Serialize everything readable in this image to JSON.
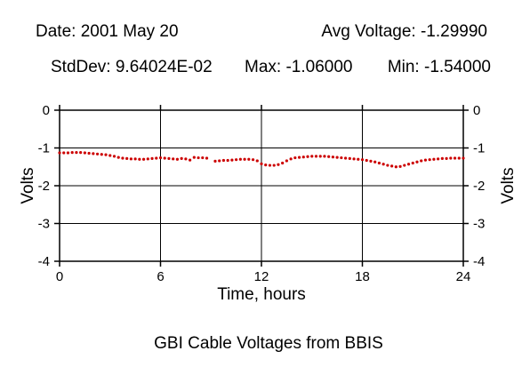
{
  "header": {
    "date": "Date: 2001 May 20",
    "avg": "Avg Voltage: -1.29990",
    "stddev": "StdDev: 9.64024E-02",
    "max": "Max: -1.06000",
    "min": "Min: -1.54000"
  },
  "chart_data": {
    "type": "scatter",
    "title": "GBI Cable Voltages from BBIS",
    "xlabel": "Time, hours",
    "ylabel": "Volts",
    "xlim": [
      0,
      24
    ],
    "ylim": [
      -4,
      0
    ],
    "xticks": [
      0,
      6,
      12,
      18,
      24
    ],
    "yticks": [
      0,
      -1,
      -2,
      -3,
      -4
    ],
    "grid": true,
    "marker_color": "#cc0000",
    "series": [
      {
        "x": [
          0.0,
          0.25,
          0.5,
          0.75,
          1.0,
          1.25,
          1.5,
          1.75,
          2.0,
          2.25,
          2.5,
          2.75,
          3.0,
          3.25,
          3.5,
          3.75,
          4.0,
          4.25,
          4.5,
          4.75,
          5.0,
          5.25,
          5.5,
          5.75,
          6.0,
          6.25,
          6.5,
          6.75,
          7.0,
          7.25,
          7.5,
          7.75,
          8.0,
          8.25,
          8.5,
          8.75,
          9.25,
          9.5,
          9.75,
          10.0,
          10.25,
          10.5,
          10.75,
          11.0,
          11.25,
          11.5,
          11.75,
          12.0,
          12.25,
          12.5,
          12.75,
          13.0,
          13.25,
          13.5,
          13.75,
          14.0,
          14.25,
          14.5,
          14.75,
          15.0,
          15.25,
          15.5,
          15.75,
          16.0,
          16.25,
          16.5,
          16.75,
          17.0,
          17.25,
          17.5,
          17.75,
          18.0,
          18.25,
          18.5,
          18.75,
          19.0,
          19.25,
          19.5,
          19.75,
          20.0,
          20.25,
          20.5,
          20.75,
          21.0,
          21.25,
          21.5,
          21.75,
          22.0,
          22.25,
          22.5,
          22.75,
          23.0,
          23.25,
          23.5,
          23.75,
          24.0
        ],
        "y": [
          -1.13,
          -1.13,
          -1.13,
          -1.12,
          -1.12,
          -1.12,
          -1.13,
          -1.14,
          -1.15,
          -1.16,
          -1.17,
          -1.18,
          -1.2,
          -1.22,
          -1.25,
          -1.27,
          -1.28,
          -1.29,
          -1.29,
          -1.3,
          -1.3,
          -1.29,
          -1.28,
          -1.27,
          -1.26,
          -1.27,
          -1.28,
          -1.29,
          -1.3,
          -1.28,
          -1.29,
          -1.32,
          -1.25,
          -1.26,
          -1.26,
          -1.27,
          -1.35,
          -1.34,
          -1.33,
          -1.33,
          -1.32,
          -1.31,
          -1.3,
          -1.3,
          -1.3,
          -1.31,
          -1.34,
          -1.42,
          -1.45,
          -1.46,
          -1.46,
          -1.44,
          -1.4,
          -1.34,
          -1.29,
          -1.26,
          -1.25,
          -1.24,
          -1.23,
          -1.22,
          -1.22,
          -1.22,
          -1.22,
          -1.23,
          -1.24,
          -1.25,
          -1.26,
          -1.27,
          -1.28,
          -1.29,
          -1.3,
          -1.31,
          -1.33,
          -1.35,
          -1.37,
          -1.4,
          -1.43,
          -1.46,
          -1.48,
          -1.5,
          -1.49,
          -1.46,
          -1.43,
          -1.4,
          -1.37,
          -1.34,
          -1.32,
          -1.31,
          -1.3,
          -1.29,
          -1.28,
          -1.28,
          -1.27,
          -1.27,
          -1.27,
          -1.27
        ]
      }
    ]
  }
}
